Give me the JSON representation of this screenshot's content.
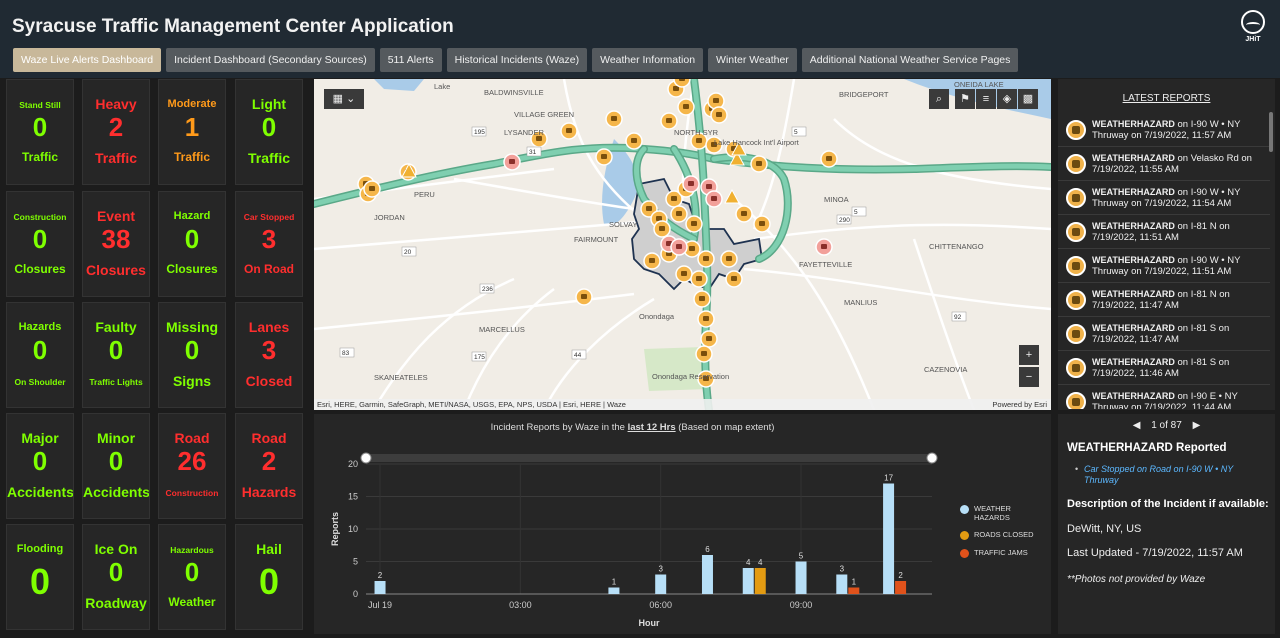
{
  "header": {
    "title": "Syracuse Traffic Management Center Application",
    "logo_text": "JHiT"
  },
  "tabs": [
    {
      "label": "Waze Live Alerts Dashboard",
      "active": true
    },
    {
      "label": "Incident Dashboard (Secondary Sources)"
    },
    {
      "label": "511 Alerts"
    },
    {
      "label": "Historical Incidents (Waze)"
    },
    {
      "label": "Weather Information"
    },
    {
      "label": "Winter Weather"
    },
    {
      "label": "Additional National Weather Service Pages"
    }
  ],
  "tiles": [
    {
      "top": "Stand Still",
      "value": "0",
      "bottom": "Traffic",
      "color": "green"
    },
    {
      "top": "Heavy",
      "value": "2",
      "bottom": "Traffic",
      "color": "red"
    },
    {
      "top": "Moderate",
      "value": "1",
      "bottom": "Traffic",
      "color": "orange"
    },
    {
      "top": "Light",
      "value": "0",
      "bottom": "Traffic",
      "color": "green"
    },
    {
      "top": "Construction",
      "value": "0",
      "bottom": "Closures",
      "color": "green"
    },
    {
      "top": "Event",
      "value": "38",
      "bottom": "Closures",
      "color": "red"
    },
    {
      "top": "Hazard",
      "value": "0",
      "bottom": "Closures",
      "color": "green"
    },
    {
      "top": "Car Stopped",
      "value": "3",
      "bottom": "On Road",
      "color": "red"
    },
    {
      "top": "Hazards",
      "value": "0",
      "bottom": "On Shoulder",
      "color": "green"
    },
    {
      "top": "Faulty",
      "value": "0",
      "bottom": "Traffic Lights",
      "color": "green"
    },
    {
      "top": "Missing",
      "value": "0",
      "bottom": "Signs",
      "color": "green"
    },
    {
      "top": "Lanes",
      "value": "3",
      "bottom": "Closed",
      "color": "red"
    },
    {
      "top": "Major",
      "value": "0",
      "bottom": "Accidents",
      "color": "green"
    },
    {
      "top": "Minor",
      "value": "0",
      "bottom": "Accidents",
      "color": "green"
    },
    {
      "top": "Road",
      "value": "26",
      "bottom": "Construction",
      "color": "red"
    },
    {
      "top": "Road",
      "value": "2",
      "bottom": "Hazards",
      "color": "red"
    },
    {
      "top": "Flooding",
      "value": "0",
      "bottom": "",
      "color": "green"
    },
    {
      "top": "Ice On",
      "value": "0",
      "bottom": "Roadway",
      "color": "green"
    },
    {
      "top": "Hazardous",
      "value": "0",
      "bottom": "Weather",
      "color": "green"
    },
    {
      "top": "Hail",
      "value": "0",
      "bottom": "",
      "color": "green"
    }
  ],
  "map": {
    "labels": [
      "BALDWINSVILLE",
      "Lake",
      "VILLAGE GREEN",
      "LYSANDER",
      "NORTH SYR",
      "Lake Hancock Int'l Airport",
      "BRIDGEPORT",
      "ONEIDA LAKE",
      "PERU",
      "JORDAN",
      "SOLVAY",
      "FAIRMOUNT",
      "MINOA",
      "CHITTENANGO",
      "FAYETTEVILLE",
      "MANLIUS",
      "Onondaga",
      "MARCELLUS",
      "SKANEATELES",
      "Onondaga Reservation",
      "CAZENOVIA"
    ],
    "route_numbers": [
      "195",
      "31",
      "5",
      "290",
      "236",
      "175",
      "83",
      "20",
      "44",
      "92",
      "5"
    ],
    "attribution": "Esri, HERE, Garmin, SafeGraph, METI/NASA, USGS, EPA, NPS, USDA | Esri, HERE | Waze",
    "powered_by": "Powered by Esri",
    "zoom_in": "+",
    "zoom_out": "−"
  },
  "reports": {
    "title": "LATEST REPORTS",
    "items": [
      {
        "type": "WEATHERHAZARD",
        "loc": "I-90 W • NY Thruway",
        "time": "7/19/2022, 11:57 AM"
      },
      {
        "type": "WEATHERHAZARD",
        "loc": "Velasko Rd",
        "time": "7/19/2022, 11:55 AM"
      },
      {
        "type": "WEATHERHAZARD",
        "loc": "I-90 W • NY Thruway",
        "time": "7/19/2022, 11:54 AM"
      },
      {
        "type": "WEATHERHAZARD",
        "loc": "I-81 N",
        "time": "7/19/2022, 11:51 AM"
      },
      {
        "type": "WEATHERHAZARD",
        "loc": "I-90 W • NY Thruway",
        "time": "7/19/2022, 11:51 AM"
      },
      {
        "type": "WEATHERHAZARD",
        "loc": "I-81 N",
        "time": "7/19/2022, 11:47 AM"
      },
      {
        "type": "WEATHERHAZARD",
        "loc": "I-81 S",
        "time": "7/19/2022, 11:47 AM"
      },
      {
        "type": "WEATHERHAZARD",
        "loc": "I-81 S",
        "time": "7/19/2022, 11:46 AM"
      },
      {
        "type": "WEATHERHAZARD",
        "loc": "I-90 E • NY Thruway",
        "time": "7/19/2022, 11:44 AM"
      }
    ]
  },
  "detail": {
    "pager": "1 of 87",
    "prev": "◀",
    "next": "▶",
    "title": "WEATHERHAZARD Reported",
    "link": "Car Stopped on Road on I-90 W • NY Thruway",
    "desc_label": "Description of the Incident if available:",
    "location": "DeWitt, NY, US",
    "updated": "Last Updated - 7/19/2022, 11:57 AM",
    "note": "**Photos not provided by Waze"
  },
  "chart": {
    "title_pre": "Incident Reports by Waze in the ",
    "title_link": "last 12 Hrs",
    "title_post": " (Based on map extent)"
  },
  "chart_data": {
    "type": "bar",
    "ylabel": "Reports",
    "xlabel": "Hour",
    "ylim": [
      0,
      20
    ],
    "yticks": [
      0,
      5,
      10,
      15,
      20
    ],
    "xticks": [
      {
        "label": "Jul 19",
        "x": 0
      },
      {
        "label": "03:00",
        "x": 3
      },
      {
        "label": "06:00",
        "x": 6
      },
      {
        "label": "09:00",
        "x": 9
      }
    ],
    "xrange": [
      -0.3,
      11.8
    ],
    "series": [
      {
        "name": "WEATHER HAZARDS",
        "color": "#b7dff7",
        "points": [
          {
            "x": 0,
            "y": 2
          },
          {
            "x": 5,
            "y": 1
          },
          {
            "x": 6,
            "y": 3
          },
          {
            "x": 7,
            "y": 6
          },
          {
            "x": 8,
            "y": 4
          },
          {
            "x": 9,
            "y": 5
          },
          {
            "x": 10,
            "y": 3
          },
          {
            "x": 11,
            "y": 17
          }
        ]
      },
      {
        "name": "ROADS CLOSED",
        "color": "#e39b12",
        "points": [
          {
            "x": 8,
            "y": 4
          }
        ]
      },
      {
        "name": "TRAFFIC JAMS",
        "color": "#e0521b",
        "points": [
          {
            "x": 10,
            "y": 1
          },
          {
            "x": 11,
            "y": 2
          }
        ]
      }
    ],
    "legend": "right"
  }
}
